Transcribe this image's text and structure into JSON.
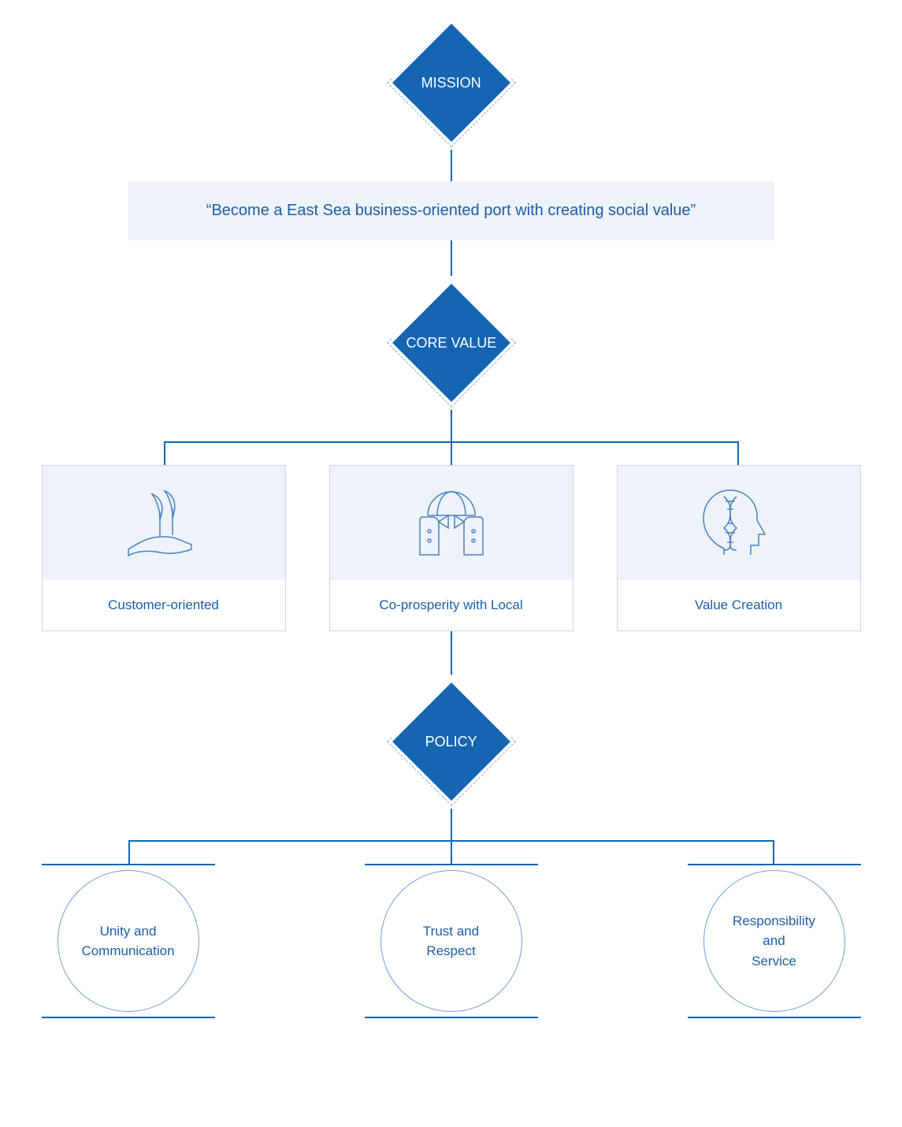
{
  "colors": {
    "primary": "#1565b3",
    "primary_text": "#1b5ea8",
    "banner_bg": "#eef3f9",
    "card_border": "#c9d9ea",
    "card_icon_bg": "#eef3f9",
    "connector": "#1565b3",
    "dash": "#6fa0d4",
    "circle_border": "#6fa0d4",
    "icon_stroke": "#4a82c3"
  },
  "diamonds": {
    "mission": "MISSION",
    "core_value": "CORE VALUE",
    "policy": "POLICY"
  },
  "mission_statement": "“Become a East Sea business-oriented port with creating social value”",
  "core_values": [
    {
      "icon": "hand-leaf",
      "label": "Customer-oriented"
    },
    {
      "icon": "globe-hands",
      "label": "Co-prosperity with Local"
    },
    {
      "icon": "head-dna",
      "label": "Value Creation"
    }
  ],
  "policies": [
    {
      "label": "Unity and\nCommunication"
    },
    {
      "label": "Trust and\nRespect"
    },
    {
      "label": "Responsibility\nand\nService"
    }
  ],
  "layout": {
    "connector_after_mission": 40,
    "connector_after_banner": 45,
    "connector_after_core": 40,
    "branch_width_core": 730,
    "branch_drop_core": 30,
    "connector_after_values": 55,
    "connector_after_policy": 40,
    "branch_width_policy": 820,
    "branch_drop_policy": 30
  }
}
